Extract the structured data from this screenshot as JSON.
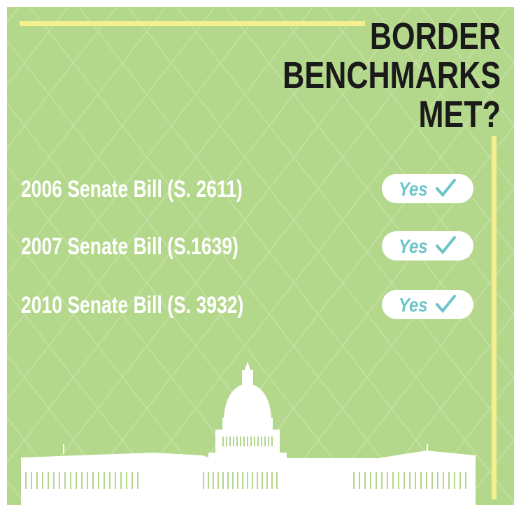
{
  "title": {
    "lines": [
      "BORDER",
      "BENCHMARKS",
      "MET?"
    ]
  },
  "rows": [
    {
      "label": "2006 Senate Bill (S. 2611)",
      "answer": "Yes"
    },
    {
      "label": "2007 Senate Bill (S.1639)",
      "answer": "Yes"
    },
    {
      "label": "2010 Senate Bill (S. 3932)",
      "answer": "Yes"
    }
  ]
}
